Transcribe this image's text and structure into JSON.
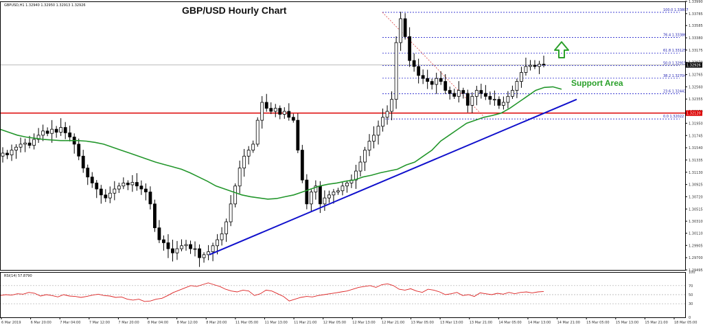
{
  "header": {
    "symbol_info": "GBPUSD,H1  1.32940 1.32950 1.32913 1.32926",
    "rsi_info": "RSI(14) 57.8790"
  },
  "chart_data": {
    "type": "candlestick",
    "title": "GBP/USD Hourly Chart",
    "annotation": "Support Area",
    "y_ticks": [
      "1.33990",
      "1.33785",
      "1.33585",
      "1.33380",
      "1.33175",
      "1.32970",
      "1.32765",
      "1.32560",
      "1.32355",
      "1.32150",
      "1.31950",
      "1.31745",
      "1.31540",
      "1.31335",
      "1.31130",
      "1.30925",
      "1.30720",
      "1.30515",
      "1.30310",
      "1.30110",
      "1.29905",
      "1.29700",
      "1.29495"
    ],
    "ylim": [
      1.29495,
      1.3399
    ],
    "x_ticks": [
      "6 Mar 2019",
      "6 Mar 20:00",
      "7 Mar 04:00",
      "7 Mar 12:00",
      "7 Mar 20:00",
      "8 Mar 04:00",
      "8 Mar 12:00",
      "8 Mar 20:00",
      "11 Mar 05:00",
      "11 Mar 13:00",
      "11 Mar 21:00",
      "12 Mar 05:00",
      "12 Mar 13:00",
      "12 Mar 21:00",
      "13 Mar 05:00",
      "13 Mar 13:00",
      "13 Mar 21:00",
      "14 Mar 05:00",
      "14 Mar 13:00",
      "14 Mar 21:00",
      "15 Mar 05:00",
      "15 Mar 13:00",
      "15 Mar 21:00",
      "18 Mar 05:00"
    ],
    "current_price": "1.32926",
    "resistance_price": "1.32120",
    "resistance_level": 1.3212,
    "fib_levels": [
      {
        "label": "100.0 1.33807",
        "value": 1.33807
      },
      {
        "label": "76.4 1.33386",
        "value": 1.33386
      },
      {
        "label": "61.8 1.33125",
        "value": 1.33125
      },
      {
        "label": "50.0 1.32915",
        "value": 1.32915
      },
      {
        "label": "38.2 1.32704",
        "value": 1.32704
      },
      {
        "label": "23.6 1.32443",
        "value": 1.32443
      },
      {
        "label": "0.0 1.32022",
        "value": 1.32022
      }
    ],
    "close_series": [
      1.3145,
      1.3142,
      1.315,
      1.3155,
      1.316,
      1.3162,
      1.3158,
      1.3168,
      1.3175,
      1.3182,
      1.3178,
      1.3185,
      1.318,
      1.3188,
      1.3179,
      1.3172,
      1.316,
      1.314,
      1.312,
      1.3105,
      1.3095,
      1.3085,
      1.3075,
      1.307,
      1.3078,
      1.3085,
      1.309,
      1.3095,
      1.3092,
      1.3096,
      1.309,
      1.3085,
      1.308,
      1.306,
      1.302,
      1.3,
      1.2995,
      1.2985,
      1.2978,
      1.2985,
      1.299,
      1.2992,
      1.2985,
      1.2985,
      1.297,
      1.2975,
      1.298,
      1.299,
      1.3,
      1.301,
      1.303,
      1.306,
      1.309,
      1.312,
      1.314,
      1.315,
      1.316,
      1.32,
      1.323,
      1.322,
      1.3215,
      1.322,
      1.321,
      1.3215,
      1.3205,
      1.32,
      1.315,
      1.31,
      1.306,
      1.308,
      1.309,
      1.306,
      1.307,
      1.3075,
      1.308,
      1.3082,
      1.309,
      1.3095,
      1.31,
      1.3115,
      1.313,
      1.315,
      1.3165,
      1.3175,
      1.319,
      1.3205,
      1.3215,
      1.3235,
      1.333,
      1.337,
      1.334,
      1.33,
      1.329,
      1.3275,
      1.327,
      1.3265,
      1.326,
      1.327,
      1.3265,
      1.325,
      1.3245,
      1.324,
      1.325,
      1.3245,
      1.3225,
      1.324,
      1.325,
      1.3245,
      1.324,
      1.3235,
      1.3235,
      1.3225,
      1.323,
      1.324,
      1.325,
      1.3265,
      1.328,
      1.329,
      1.3292,
      1.329,
      1.3294,
      1.3293
    ],
    "ma_series": [
      1.3185,
      1.318,
      1.3175,
      1.3172,
      1.317,
      1.3168,
      1.3167,
      1.3166,
      1.3166,
      1.3166,
      1.3165,
      1.3163,
      1.316,
      1.3155,
      1.315,
      1.3145,
      1.314,
      1.3135,
      1.313,
      1.3126,
      1.3122,
      1.3118,
      1.3112,
      1.3105,
      1.3098,
      1.309,
      1.3085,
      1.308,
      1.3075,
      1.3072,
      1.307,
      1.3068,
      1.3069,
      1.3072,
      1.3075,
      1.308,
      1.3085,
      1.309,
      1.3093,
      1.3095,
      1.3098,
      1.31,
      1.3105,
      1.3108,
      1.3112,
      1.3115,
      1.3118,
      1.3125,
      1.313,
      1.314,
      1.315,
      1.3165,
      1.3175,
      1.3185,
      1.3195,
      1.32,
      1.3205,
      1.3208,
      1.3212,
      1.322,
      1.323,
      1.324,
      1.325,
      1.3255,
      1.3256,
      1.3252
    ],
    "trendline": {
      "start": 1.2975,
      "end": 1.3235
    },
    "rsi": {
      "ticks": [
        "100",
        "70",
        "50",
        "30",
        "0"
      ],
      "values": [
        48,
        50,
        49,
        52,
        51,
        55,
        53,
        47,
        50,
        48,
        45,
        50,
        47,
        46,
        44,
        46,
        49,
        51,
        48,
        47,
        44,
        45,
        40,
        38,
        40,
        35,
        36,
        40,
        42,
        48,
        55,
        60,
        65,
        70,
        68,
        72,
        76,
        72,
        68,
        62,
        58,
        56,
        60,
        58,
        48,
        52,
        60,
        58,
        52,
        46,
        36,
        40,
        44,
        46,
        45,
        48,
        50,
        52,
        54,
        56,
        58,
        62,
        66,
        68,
        70,
        66,
        72,
        74,
        70,
        62,
        60,
        63,
        58,
        55,
        62,
        60,
        56,
        50,
        52,
        55,
        48,
        50,
        46,
        54,
        52,
        50,
        53,
        51,
        55,
        52,
        55,
        56,
        54,
        56,
        57
      ]
    }
  }
}
